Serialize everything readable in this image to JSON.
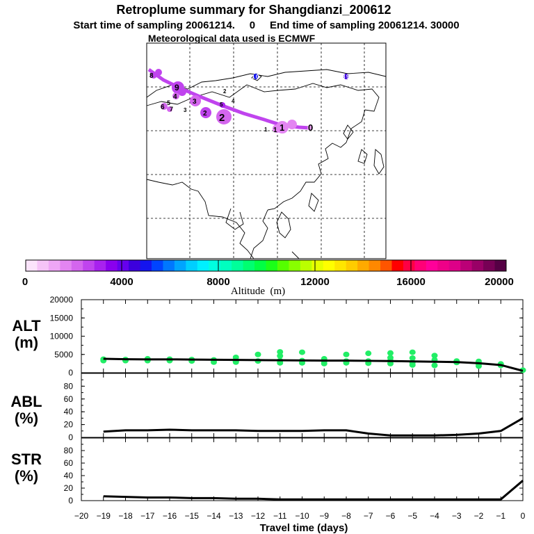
{
  "title": "Retroplume summary for Shangdianzi_200612",
  "subtitle": "Start time of sampling 20061214.     0     End time of sampling 20061214. 30000",
  "met_line": "Meteorological data used is ECMWF",
  "colorbar": {
    "label": "Altitude  (m)",
    "ticks": [
      "0",
      "4000",
      "8000",
      "12000",
      "16000",
      "20000"
    ],
    "colors": [
      "#fbe4fb",
      "#f5c4f7",
      "#eea6f5",
      "#e385f2",
      "#d466ee",
      "#c044ee",
      "#a822ee",
      "#8a00ee",
      "#6600ee",
      "#3c00dd",
      "#1414ee",
      "#0044ff",
      "#0077ff",
      "#00a4ff",
      "#00cfff",
      "#00f0ff",
      "#00ffe0",
      "#00ffbf",
      "#00ff9a",
      "#00ff70",
      "#00ff44",
      "#1bff18",
      "#55ff00",
      "#88ff00",
      "#bbff00",
      "#e6ff00",
      "#ffff00",
      "#ffe600",
      "#ffcc00",
      "#ffaa00",
      "#ff8800",
      "#ff5500",
      "#ff0000",
      "#ff0044",
      "#ff0077",
      "#ff0099",
      "#ee0088",
      "#dd0088",
      "#bb0077",
      "#990066",
      "#770055",
      "#550044"
    ]
  },
  "map": {
    "trajectory_labels": [
      "0",
      "1",
      "1",
      "1",
      "2",
      "2",
      "3",
      "4",
      "5",
      "6",
      "7",
      "8",
      "9"
    ],
    "cluster_labels": [
      "0",
      "1",
      "2",
      "3",
      "4",
      "5",
      "6",
      "7",
      "8",
      "9"
    ]
  },
  "chart_data": [
    {
      "name": "ALT",
      "type": "line",
      "ylabel_top": "ALT",
      "ylabel_bottom": "(m)",
      "ylim": [
        0,
        20000
      ],
      "yticks": [
        "20000",
        "15000",
        "10000",
        "5000",
        "0"
      ],
      "x": [
        -19,
        -18,
        -17,
        -16,
        -15,
        -14,
        -13,
        -12,
        -11,
        -10,
        -9,
        -8,
        -7,
        -6,
        -5,
        -4,
        -3,
        -2,
        -1,
        0
      ],
      "mean_altitude": [
        3800,
        3700,
        3650,
        3650,
        3600,
        3550,
        3500,
        3450,
        3400,
        3350,
        3300,
        3300,
        3250,
        3200,
        3100,
        3000,
        2900,
        2600,
        2100,
        500
      ],
      "clusters": {
        "color": "#22ee66",
        "points": [
          [
            -19,
            3700
          ],
          [
            -19,
            3300
          ],
          [
            -18,
            3600
          ],
          [
            -18,
            3300
          ],
          [
            -17,
            3800
          ],
          [
            -17,
            3300
          ],
          [
            -16,
            3700
          ],
          [
            -16,
            3300
          ],
          [
            -15,
            3600
          ],
          [
            -15,
            3200
          ],
          [
            -14,
            3500
          ],
          [
            -14,
            2900
          ],
          [
            -13,
            4200
          ],
          [
            -13,
            3200
          ],
          [
            -13,
            2900
          ],
          [
            -12,
            5000
          ],
          [
            -12,
            3200
          ],
          [
            -11,
            5700
          ],
          [
            -11,
            4600
          ],
          [
            -11,
            3300
          ],
          [
            -11,
            2700
          ],
          [
            -10,
            5600
          ],
          [
            -10,
            3300
          ],
          [
            -10,
            2700
          ],
          [
            -9,
            3800
          ],
          [
            -9,
            3200
          ],
          [
            -9,
            2500
          ],
          [
            -8,
            5000
          ],
          [
            -8,
            3200
          ],
          [
            -8,
            2700
          ],
          [
            -7,
            5300
          ],
          [
            -7,
            3200
          ],
          [
            -7,
            2600
          ],
          [
            -6,
            5400
          ],
          [
            -6,
            4100
          ],
          [
            -6,
            3300
          ],
          [
            -6,
            2500
          ],
          [
            -5,
            5600
          ],
          [
            -5,
            4000
          ],
          [
            -5,
            2800
          ],
          [
            -5,
            2100
          ],
          [
            -4,
            4700
          ],
          [
            -4,
            3500
          ],
          [
            -4,
            2000
          ],
          [
            -3,
            3200
          ],
          [
            -3,
            2800
          ],
          [
            -2,
            3100
          ],
          [
            -2,
            2400
          ],
          [
            -2,
            1800
          ],
          [
            -1,
            2400
          ],
          [
            -1,
            2000
          ],
          [
            0,
            700
          ]
        ]
      }
    },
    {
      "name": "ABL",
      "type": "line",
      "ylabel_top": "ABL",
      "ylabel_bottom": "(%)",
      "ylim": [
        0,
        100
      ],
      "yticks": [
        "80",
        "60",
        "40",
        "20",
        "0"
      ],
      "x": [
        -19,
        -18,
        -17,
        -16,
        -15,
        -14,
        -13,
        -12,
        -11,
        -10,
        -9,
        -8,
        -7,
        -6,
        -5,
        -4,
        -3,
        -2,
        -1,
        0
      ],
      "values": [
        9,
        11,
        11,
        12,
        11,
        11,
        11,
        10,
        10,
        10,
        11,
        11,
        6,
        3,
        3,
        3,
        4,
        6,
        10,
        30
      ]
    },
    {
      "name": "STR",
      "type": "line",
      "ylabel_top": "STR",
      "ylabel_bottom": "(%)",
      "ylim": [
        0,
        100
      ],
      "yticks": [
        "80",
        "60",
        "40",
        "20",
        "0"
      ],
      "x": [
        -19,
        -18,
        -17,
        -16,
        -15,
        -14,
        -13,
        -12,
        -11,
        -10,
        -9,
        -8,
        -7,
        -6,
        -5,
        -4,
        -3,
        -2,
        -1,
        0
      ],
      "values": [
        7,
        6,
        5,
        5,
        4,
        4,
        3,
        3,
        2,
        2,
        2,
        2,
        2,
        2,
        2,
        2,
        2,
        2,
        2,
        32
      ],
      "xlabel": "Travel time (days)",
      "xlim": [
        -20,
        0
      ],
      "xticks": [
        "−20",
        "−19",
        "−18",
        "−17",
        "−16",
        "−15",
        "−14",
        "−13",
        "−12",
        "−11",
        "−10",
        "−9",
        "−8",
        "−7",
        "−6",
        "−5",
        "−4",
        "−3",
        "−2",
        "−1",
        "0"
      ]
    }
  ]
}
